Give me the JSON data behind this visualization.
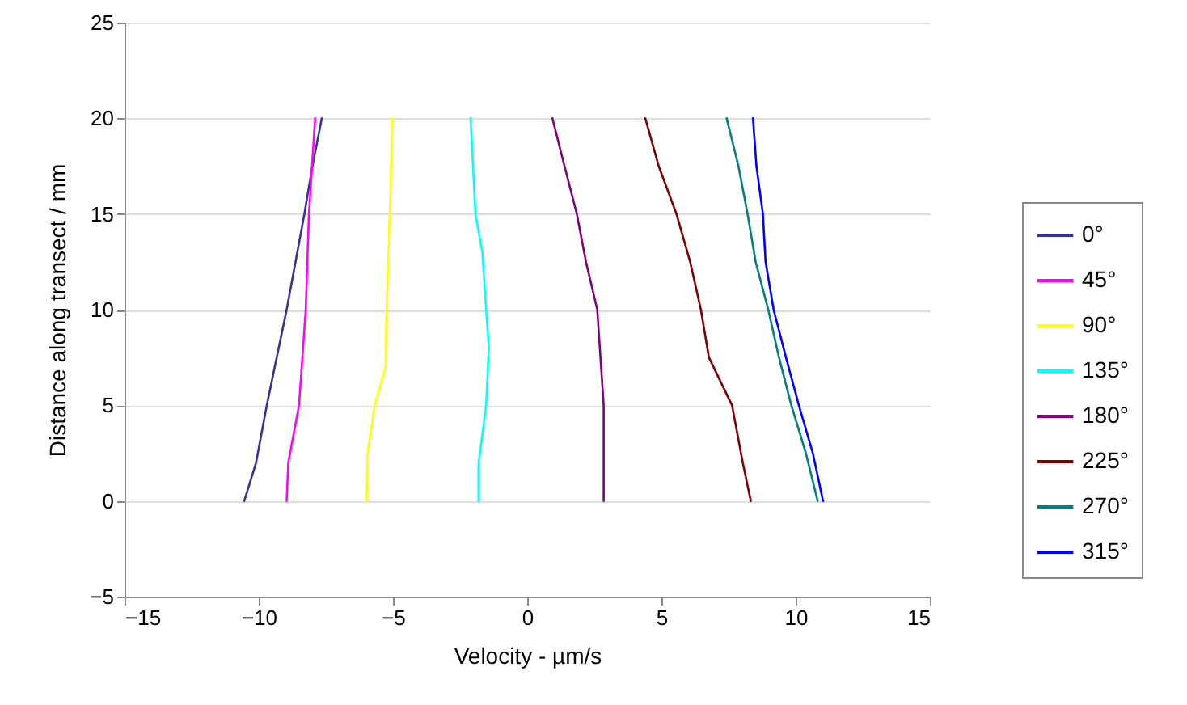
{
  "chart_data": {
    "type": "line",
    "xlabel": "Velocity - µm/s",
    "ylabel": "Distance along transect / mm",
    "xlim": [
      -15,
      15
    ],
    "xticks": [
      -15,
      -10,
      -5,
      0,
      5,
      10,
      15
    ],
    "ylim": [
      -5,
      25
    ],
    "yticks": [
      -5,
      0,
      5,
      10,
      15,
      20,
      25
    ],
    "grid": "y",
    "legend": "right",
    "marker": "none",
    "line_style": "solid",
    "series": [
      {
        "name": "0°",
        "color": "#333399",
        "x": [
          -10.54,
          -10.1,
          -9.7,
          -8.96,
          -8.3,
          -8.0,
          -7.65
        ],
        "values": [
          0,
          2,
          5,
          10,
          15,
          17.5,
          20
        ]
      },
      {
        "name": "45°",
        "color": "#ff00ff",
        "x": [
          -8.96,
          -8.9,
          -8.5,
          -8.25,
          -8.13,
          -7.9
        ],
        "values": [
          0,
          2,
          5,
          10,
          15,
          20
        ]
      },
      {
        "name": "90°",
        "color": "#ffff00",
        "x": [
          -5.98,
          -5.95,
          -5.68,
          -5.28,
          -5.24,
          -5.12,
          -5.02
        ],
        "values": [
          0,
          2.5,
          5,
          7,
          10,
          15,
          20
        ]
      },
      {
        "name": "135°",
        "color": "#00ffff",
        "x": [
          -1.81,
          -1.81,
          -1.53,
          -1.43,
          -1.53,
          -1.67,
          -1.93,
          -2.0,
          -2.11
        ],
        "values": [
          0,
          2,
          5,
          8,
          10,
          13,
          15,
          17,
          20
        ]
      },
      {
        "name": "180°",
        "color": "#800080",
        "x": [
          2.85,
          2.85,
          2.61,
          2.19,
          1.85,
          1.39,
          0.94
        ],
        "values": [
          0,
          5,
          10,
          12.5,
          15,
          17.5,
          20
        ]
      },
      {
        "name": "225°",
        "color": "#800000",
        "x": [
          8.33,
          8.03,
          7.63,
          6.77,
          6.47,
          6.07,
          5.56,
          4.9,
          4.4
        ],
        "values": [
          0,
          2,
          5,
          7.5,
          10,
          12.5,
          15,
          17.5,
          20
        ]
      },
      {
        "name": "270°",
        "color": "#008080",
        "x": [
          10.82,
          10.38,
          9.84,
          9.38,
          8.98,
          8.51,
          8.21,
          7.87,
          7.43
        ],
        "values": [
          0,
          2.5,
          5,
          7.5,
          10,
          12.5,
          15,
          17.5,
          20
        ]
      },
      {
        "name": "315°",
        "color": "#0000ff",
        "x": [
          11.02,
          10.64,
          10.12,
          9.64,
          9.18,
          8.88,
          8.78,
          8.54,
          8.41
        ],
        "values": [
          0,
          2.5,
          5,
          7.5,
          10,
          12.5,
          15,
          17.5,
          20
        ]
      }
    ]
  }
}
